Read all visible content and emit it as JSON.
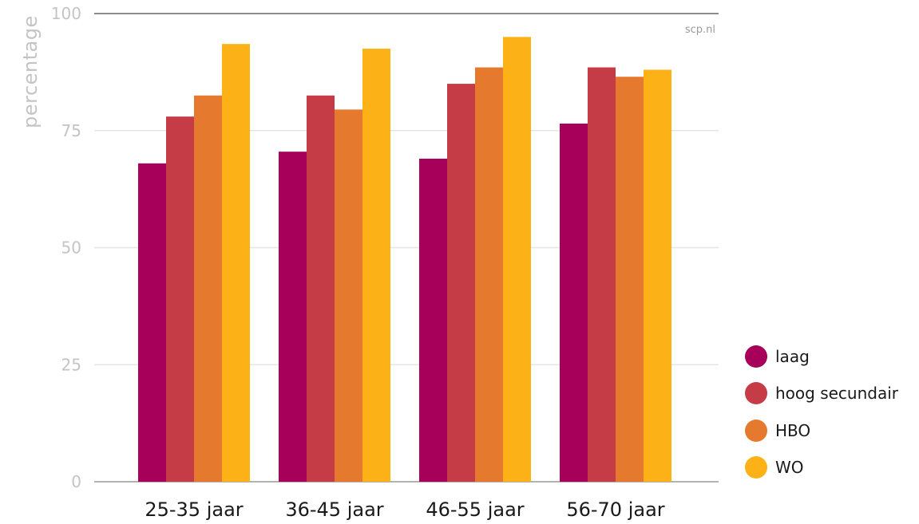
{
  "chart_data": {
    "type": "bar",
    "ylabel": "percentage",
    "source": "scp.nl",
    "ylim": [
      0,
      100
    ],
    "yticks": [
      "0",
      "25",
      "50",
      "75",
      "100"
    ],
    "categories": [
      "25-35 jaar",
      "36-45 jaar",
      "46-55 jaar",
      "56-70 jaar"
    ],
    "series": [
      {
        "name": "laag",
        "color": "#a6005a",
        "values": [
          68,
          70.5,
          69,
          76.5
        ]
      },
      {
        "name": "hoog secundair",
        "color": "#c63c46",
        "values": [
          78,
          82.5,
          85,
          88.5
        ]
      },
      {
        "name": "HBO",
        "color": "#e57a2e",
        "values": [
          82.5,
          79.5,
          88.5,
          86.5
        ]
      },
      {
        "name": "WO",
        "color": "#fcb216",
        "values": [
          93.5,
          92.5,
          95,
          88
        ]
      }
    ],
    "grid": true,
    "legend": "bottom-right"
  }
}
